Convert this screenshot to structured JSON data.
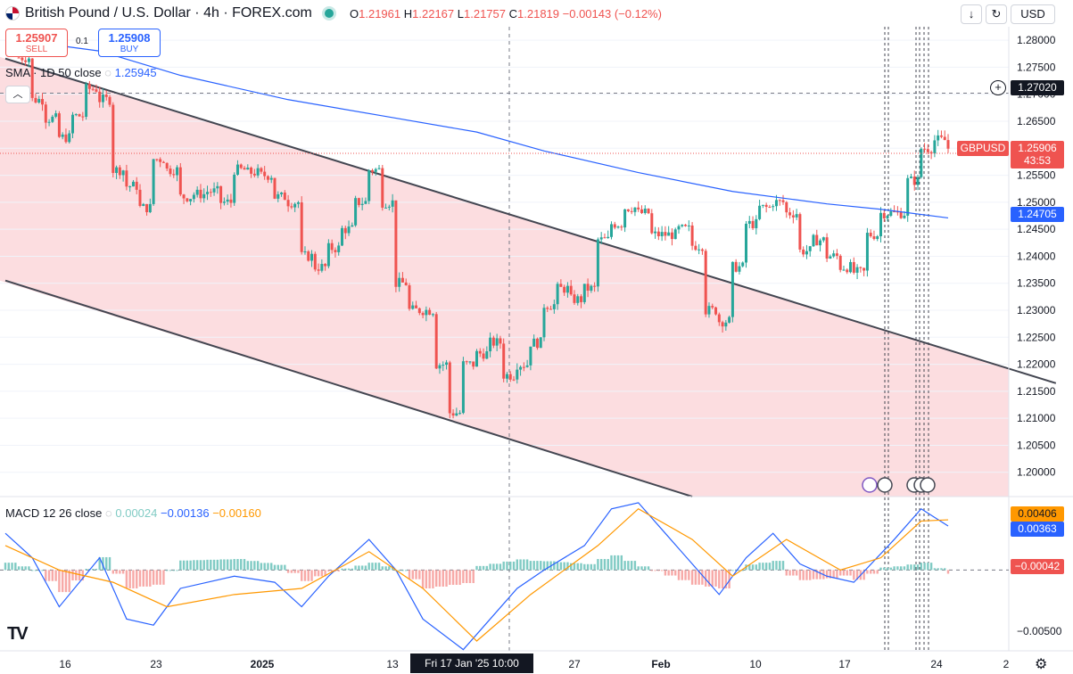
{
  "header": {
    "title": "British Pound / U.S. Dollar · 4h · FOREX.com",
    "ohlc": {
      "o_label": "O",
      "o": "1.21961",
      "h_label": "H",
      "h": "1.22167",
      "l_label": "L",
      "l": "1.21757",
      "c_label": "C",
      "c": "1.21819",
      "change": "−0.00143 (−0.12%)"
    },
    "currency": "USD",
    "icons": [
      "down-arrow-icon",
      "compare-icon"
    ]
  },
  "trade": {
    "sell_price": "1.25907",
    "sell_label": "SELL",
    "buy_price": "1.25908",
    "buy_label": "BUY",
    "spread": "0.1"
  },
  "sma_legend": {
    "label": "SMA · 1D 50 close",
    "value": "1.25945"
  },
  "macd_legend": {
    "label": "MACD 12 26 close",
    "hist": "0.00024",
    "macd": "−0.00136",
    "signal": "−0.00160"
  },
  "price_labels": {
    "crosshair": "1.27020",
    "symbol": "GBPUSD",
    "last": "1.25906",
    "countdown": "43:53",
    "sma": "1.24705",
    "macd_signal": "0.00406",
    "macd_line": "0.00363",
    "macd_hist": "−0.00042"
  },
  "crosshair_time": "Fri 17 Jan '25   10:00",
  "colors": {
    "up": "#26a69a",
    "down": "#ef5350",
    "sma": "#2962ff",
    "signal": "#ff9800",
    "channel_fill": "#fcdde0"
  },
  "chart_data": [
    {
      "type": "candlestick",
      "title": "British Pound / U.S. Dollar · 4h · FOREX.com",
      "y_ticks": [
        "1.28000",
        "1.27500",
        "1.27000",
        "1.26500",
        "1.26000",
        "1.25500",
        "1.25000",
        "1.24500",
        "1.24000",
        "1.23500",
        "1.23000",
        "1.22500",
        "1.22000",
        "1.21500",
        "1.21000",
        "1.20500",
        "1.20000"
      ],
      "x_ticks": [
        "16",
        "23",
        "2025",
        "13",
        "20",
        "27",
        "Feb",
        "10",
        "17",
        "24",
        "2"
      ],
      "ylim": [
        1.1955,
        1.2825
      ],
      "grid": true,
      "price_path": [
        {
          "date": "2024-12-12",
          "price": 1.2768
        },
        {
          "date": "2024-12-13",
          "price": 1.269
        },
        {
          "date": "2024-12-15",
          "price": 1.262
        },
        {
          "date": "2024-12-16",
          "price": 1.266
        },
        {
          "date": "2024-12-17",
          "price": 1.271
        },
        {
          "date": "2024-12-18",
          "price": 1.269
        },
        {
          "date": "2024-12-19",
          "price": 1.256
        },
        {
          "date": "2024-12-20",
          "price": 1.253
        },
        {
          "date": "2024-12-21",
          "price": 1.249
        },
        {
          "date": "2024-12-22",
          "price": 1.258
        },
        {
          "date": "2024-12-23",
          "price": 1.256
        },
        {
          "date": "2024-12-24",
          "price": 1.251
        },
        {
          "date": "2024-12-26",
          "price": 1.252
        },
        {
          "date": "2024-12-27",
          "price": 1.25
        },
        {
          "date": "2024-12-28",
          "price": 1.256
        },
        {
          "date": "2024-12-30",
          "price": 1.255
        },
        {
          "date": "2024-12-31",
          "price": 1.251
        },
        {
          "date": "2025-01-01",
          "price": 1.25
        },
        {
          "date": "2025-01-02",
          "price": 1.24
        },
        {
          "date": "2025-01-03",
          "price": 1.238
        },
        {
          "date": "2025-01-05",
          "price": 1.245
        },
        {
          "date": "2025-01-06",
          "price": 1.25
        },
        {
          "date": "2025-01-07",
          "price": 1.256
        },
        {
          "date": "2025-01-08",
          "price": 1.25
        },
        {
          "date": "2025-01-09",
          "price": 1.235
        },
        {
          "date": "2025-01-10",
          "price": 1.23
        },
        {
          "date": "2025-01-11",
          "price": 1.23
        },
        {
          "date": "2025-01-12",
          "price": 1.22
        },
        {
          "date": "2025-01-13",
          "price": 1.211
        },
        {
          "date": "2025-01-14",
          "price": 1.22
        },
        {
          "date": "2025-01-15",
          "price": 1.222
        },
        {
          "date": "2025-01-16",
          "price": 1.224
        },
        {
          "date": "2025-01-17",
          "price": 1.218
        },
        {
          "date": "2025-01-18",
          "price": 1.22
        },
        {
          "date": "2025-01-19",
          "price": 1.224
        },
        {
          "date": "2025-01-20",
          "price": 1.231
        },
        {
          "date": "2025-01-21",
          "price": 1.234
        },
        {
          "date": "2025-01-22",
          "price": 1.232
        },
        {
          "date": "2025-01-23",
          "price": 1.234
        },
        {
          "date": "2025-01-24",
          "price": 1.243
        },
        {
          "date": "2025-01-25",
          "price": 1.246
        },
        {
          "date": "2025-01-26",
          "price": 1.249
        },
        {
          "date": "2025-01-27",
          "price": 1.248
        },
        {
          "date": "2025-01-28",
          "price": 1.244
        },
        {
          "date": "2025-01-29",
          "price": 1.244
        },
        {
          "date": "2025-01-30",
          "price": 1.245
        },
        {
          "date": "2025-01-31",
          "price": 1.242
        },
        {
          "date": "2025-02-01",
          "price": 1.23
        },
        {
          "date": "2025-02-02",
          "price": 1.228
        },
        {
          "date": "2025-02-03",
          "price": 1.238
        },
        {
          "date": "2025-02-04",
          "price": 1.246
        },
        {
          "date": "2025-02-05",
          "price": 1.249
        },
        {
          "date": "2025-02-06",
          "price": 1.25
        },
        {
          "date": "2025-02-07",
          "price": 1.248
        },
        {
          "date": "2025-02-08",
          "price": 1.241
        },
        {
          "date": "2025-02-09",
          "price": 1.243
        },
        {
          "date": "2025-02-10",
          "price": 1.24
        },
        {
          "date": "2025-02-11",
          "price": 1.238
        },
        {
          "date": "2025-02-12",
          "price": 1.237
        },
        {
          "date": "2025-02-13",
          "price": 1.244
        },
        {
          "date": "2025-02-14",
          "price": 1.248
        },
        {
          "date": "2025-02-15",
          "price": 1.248
        },
        {
          "date": "2025-02-16",
          "price": 1.254
        },
        {
          "date": "2025-02-17",
          "price": 1.26
        },
        {
          "date": "2025-02-18",
          "price": 1.2615
        },
        {
          "date": "2025-02-19",
          "price": 1.26
        }
      ],
      "sma_path": [
        {
          "date": "2024-12-12",
          "value": 1.28
        },
        {
          "date": "2024-12-18",
          "value": 1.278
        },
        {
          "date": "2024-12-24",
          "value": 1.2735
        },
        {
          "date": "2025-01-01",
          "value": 1.269
        },
        {
          "date": "2025-01-08",
          "value": 1.266
        },
        {
          "date": "2025-01-15",
          "value": 1.263
        },
        {
          "date": "2025-01-20",
          "value": 1.2595
        },
        {
          "date": "2025-01-27",
          "value": 1.2555
        },
        {
          "date": "2025-02-03",
          "value": 1.252
        },
        {
          "date": "2025-02-10",
          "value": 1.2497
        },
        {
          "date": "2025-02-14",
          "value": 1.2487
        },
        {
          "date": "2025-02-19",
          "value": 1.2471
        }
      ],
      "channel": {
        "upper": [
          {
            "date": "2024-12-11",
            "price": 1.2766
          },
          {
            "date": "2025-02-27",
            "price": 1.2165
          }
        ],
        "lower": [
          {
            "date": "2024-12-11",
            "price": 1.2355
          },
          {
            "date": "2025-01-31",
            "price": 1.1955
          }
        ]
      },
      "last_price": 1.25906,
      "crosshair": {
        "date": "2025-01-17",
        "time": "10:00",
        "price": 1.2702
      }
    },
    {
      "type": "line",
      "title": "MACD 12 26 close",
      "y_ticks": [
        "−0.00500"
      ],
      "ylim": [
        -0.0066,
        0.006
      ],
      "macd_path": [
        {
          "date": "2024-12-11",
          "value": 0.003
        },
        {
          "date": "2024-12-13",
          "value": 0.001
        },
        {
          "date": "2024-12-15",
          "value": -0.003
        },
        {
          "date": "2024-12-18",
          "value": 0.001
        },
        {
          "date": "2024-12-20",
          "value": -0.004
        },
        {
          "date": "2024-12-22",
          "value": -0.0045
        },
        {
          "date": "2024-12-24",
          "value": -0.0015
        },
        {
          "date": "2024-12-28",
          "value": -0.0005
        },
        {
          "date": "2024-12-31",
          "value": -0.001
        },
        {
          "date": "2025-01-02",
          "value": -0.003
        },
        {
          "date": "2025-01-04",
          "value": -0.0005
        },
        {
          "date": "2025-01-07",
          "value": 0.0025
        },
        {
          "date": "2025-01-09",
          "value": 0.0
        },
        {
          "date": "2025-01-11",
          "value": -0.004
        },
        {
          "date": "2025-01-14",
          "value": -0.0065
        },
        {
          "date": "2025-01-16",
          "value": -0.004
        },
        {
          "date": "2025-01-18",
          "value": -0.0015
        },
        {
          "date": "2025-01-20",
          "value": 0.0
        },
        {
          "date": "2025-01-23",
          "value": 0.002
        },
        {
          "date": "2025-01-25",
          "value": 0.005
        },
        {
          "date": "2025-01-27",
          "value": 0.0055
        },
        {
          "date": "2025-01-29",
          "value": 0.003
        },
        {
          "date": "2025-01-31",
          "value": 0.0005
        },
        {
          "date": "2025-02-02",
          "value": -0.002
        },
        {
          "date": "2025-02-04",
          "value": 0.001
        },
        {
          "date": "2025-02-06",
          "value": 0.003
        },
        {
          "date": "2025-02-08",
          "value": 0.0005
        },
        {
          "date": "2025-02-10",
          "value": -0.0005
        },
        {
          "date": "2025-02-12",
          "value": -0.001
        },
        {
          "date": "2025-02-15",
          "value": 0.0025
        },
        {
          "date": "2025-02-17",
          "value": 0.005
        },
        {
          "date": "2025-02-19",
          "value": 0.0036
        }
      ],
      "signal_path": [
        {
          "date": "2024-12-11",
          "value": 0.002
        },
        {
          "date": "2024-12-15",
          "value": 0.0
        },
        {
          "date": "2024-12-19",
          "value": -0.001
        },
        {
          "date": "2024-12-23",
          "value": -0.003
        },
        {
          "date": "2024-12-28",
          "value": -0.002
        },
        {
          "date": "2025-01-02",
          "value": -0.0015
        },
        {
          "date": "2025-01-07",
          "value": 0.0015
        },
        {
          "date": "2025-01-11",
          "value": -0.0015
        },
        {
          "date": "2025-01-15",
          "value": -0.0058
        },
        {
          "date": "2025-01-19",
          "value": -0.002
        },
        {
          "date": "2025-01-24",
          "value": 0.002
        },
        {
          "date": "2025-01-27",
          "value": 0.005
        },
        {
          "date": "2025-01-31",
          "value": 0.0025
        },
        {
          "date": "2025-02-03",
          "value": -0.0005
        },
        {
          "date": "2025-02-07",
          "value": 0.0025
        },
        {
          "date": "2025-02-11",
          "value": 0.0
        },
        {
          "date": "2025-02-14",
          "value": 0.001
        },
        {
          "date": "2025-02-17",
          "value": 0.004
        },
        {
          "date": "2025-02-19",
          "value": 0.0041
        }
      ]
    }
  ]
}
